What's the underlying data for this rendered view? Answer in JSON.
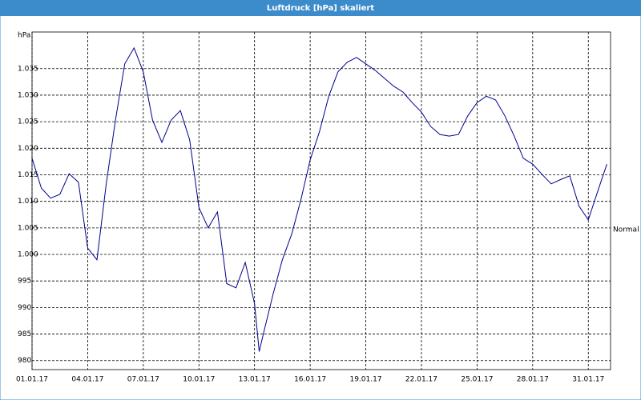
{
  "chart_data": {
    "type": "line",
    "title": "Luftdruck [hPa] skaliert",
    "y_label": "hPa",
    "x": [
      0,
      0.5,
      1,
      1.5,
      2,
      2.5,
      3,
      3.5,
      4,
      4.5,
      5,
      5.5,
      6,
      6.5,
      7,
      7.5,
      8,
      8.5,
      9,
      9.5,
      10,
      10.5,
      11,
      11.5,
      12,
      12.25,
      12.5,
      13,
      13.5,
      14,
      14.5,
      15,
      15.5,
      16,
      16.5,
      17,
      17.5,
      18,
      18.5,
      19,
      19.5,
      20,
      20.5,
      21,
      21.5,
      22,
      22.5,
      23,
      23.5,
      24,
      24.5,
      25,
      25.5,
      26,
      26.5,
      27,
      27.5,
      28,
      28.5,
      29,
      29.5,
      30,
      30.5,
      31
    ],
    "series": [
      {
        "color": "#00008b",
        "values": [
          1018.1,
          1012.5,
          1010.6,
          1011.3,
          1015.2,
          1013.6,
          1001.2,
          999,
          1013.3,
          1025.3,
          1035.9,
          1038.9,
          1034.4,
          1025.3,
          1021.1,
          1025.3,
          1027.1,
          1021.6,
          1008.8,
          1005,
          1008,
          994.5,
          993.7,
          998.5,
          990.7,
          981.7,
          985.4,
          992.5,
          999,
          1003.8,
          1010.3,
          1017.8,
          1023.1,
          1029.8,
          1034.4,
          1036.2,
          1037.1,
          1035.9,
          1034.7,
          1033.2,
          1031.7,
          1030.6,
          1028.6,
          1026.8,
          1024.1,
          1022.6,
          1022.3,
          1022.6,
          1026.1,
          1028.6,
          1029.8,
          1029.1,
          1026.1,
          1022.3,
          1018.1,
          1017,
          1015.1,
          1013.3,
          1014.1,
          1014.8,
          1009.1,
          1006.5,
          1011.8,
          1017
        ]
      }
    ],
    "xlim": [
      0,
      31.2
    ],
    "xticks": [
      {
        "value": 0,
        "label": "01.01.17"
      },
      {
        "value": 3,
        "label": "04.01.17"
      },
      {
        "value": 6,
        "label": "07.01.17"
      },
      {
        "value": 9,
        "label": "10.01.17"
      },
      {
        "value": 12,
        "label": "13.01.17"
      },
      {
        "value": 15,
        "label": "16.01.17"
      },
      {
        "value": 18,
        "label": "19.01.17"
      },
      {
        "value": 21,
        "label": "22.01.17"
      },
      {
        "value": 24,
        "label": "25.01.17"
      },
      {
        "value": 27,
        "label": "28.01.17"
      },
      {
        "value": 30,
        "label": "31.01.17"
      }
    ],
    "ylim": [
      978.3,
      1041.9
    ],
    "yticks": [
      980,
      985,
      990,
      995,
      {
        "value": 1000,
        "label": "1.000"
      },
      {
        "value": 1005,
        "label": "1.005"
      },
      {
        "value": 1010,
        "label": "1.010"
      },
      {
        "value": 1015,
        "label": "1.015"
      },
      {
        "value": 1020,
        "label": "1.020"
      },
      {
        "value": 1025,
        "label": "1.025"
      },
      {
        "value": 1030,
        "label": "1.030"
      },
      {
        "value": 1035,
        "label": "1.035"
      }
    ],
    "grid": true,
    "reference": {
      "label": "Normal",
      "value": 1005
    }
  }
}
